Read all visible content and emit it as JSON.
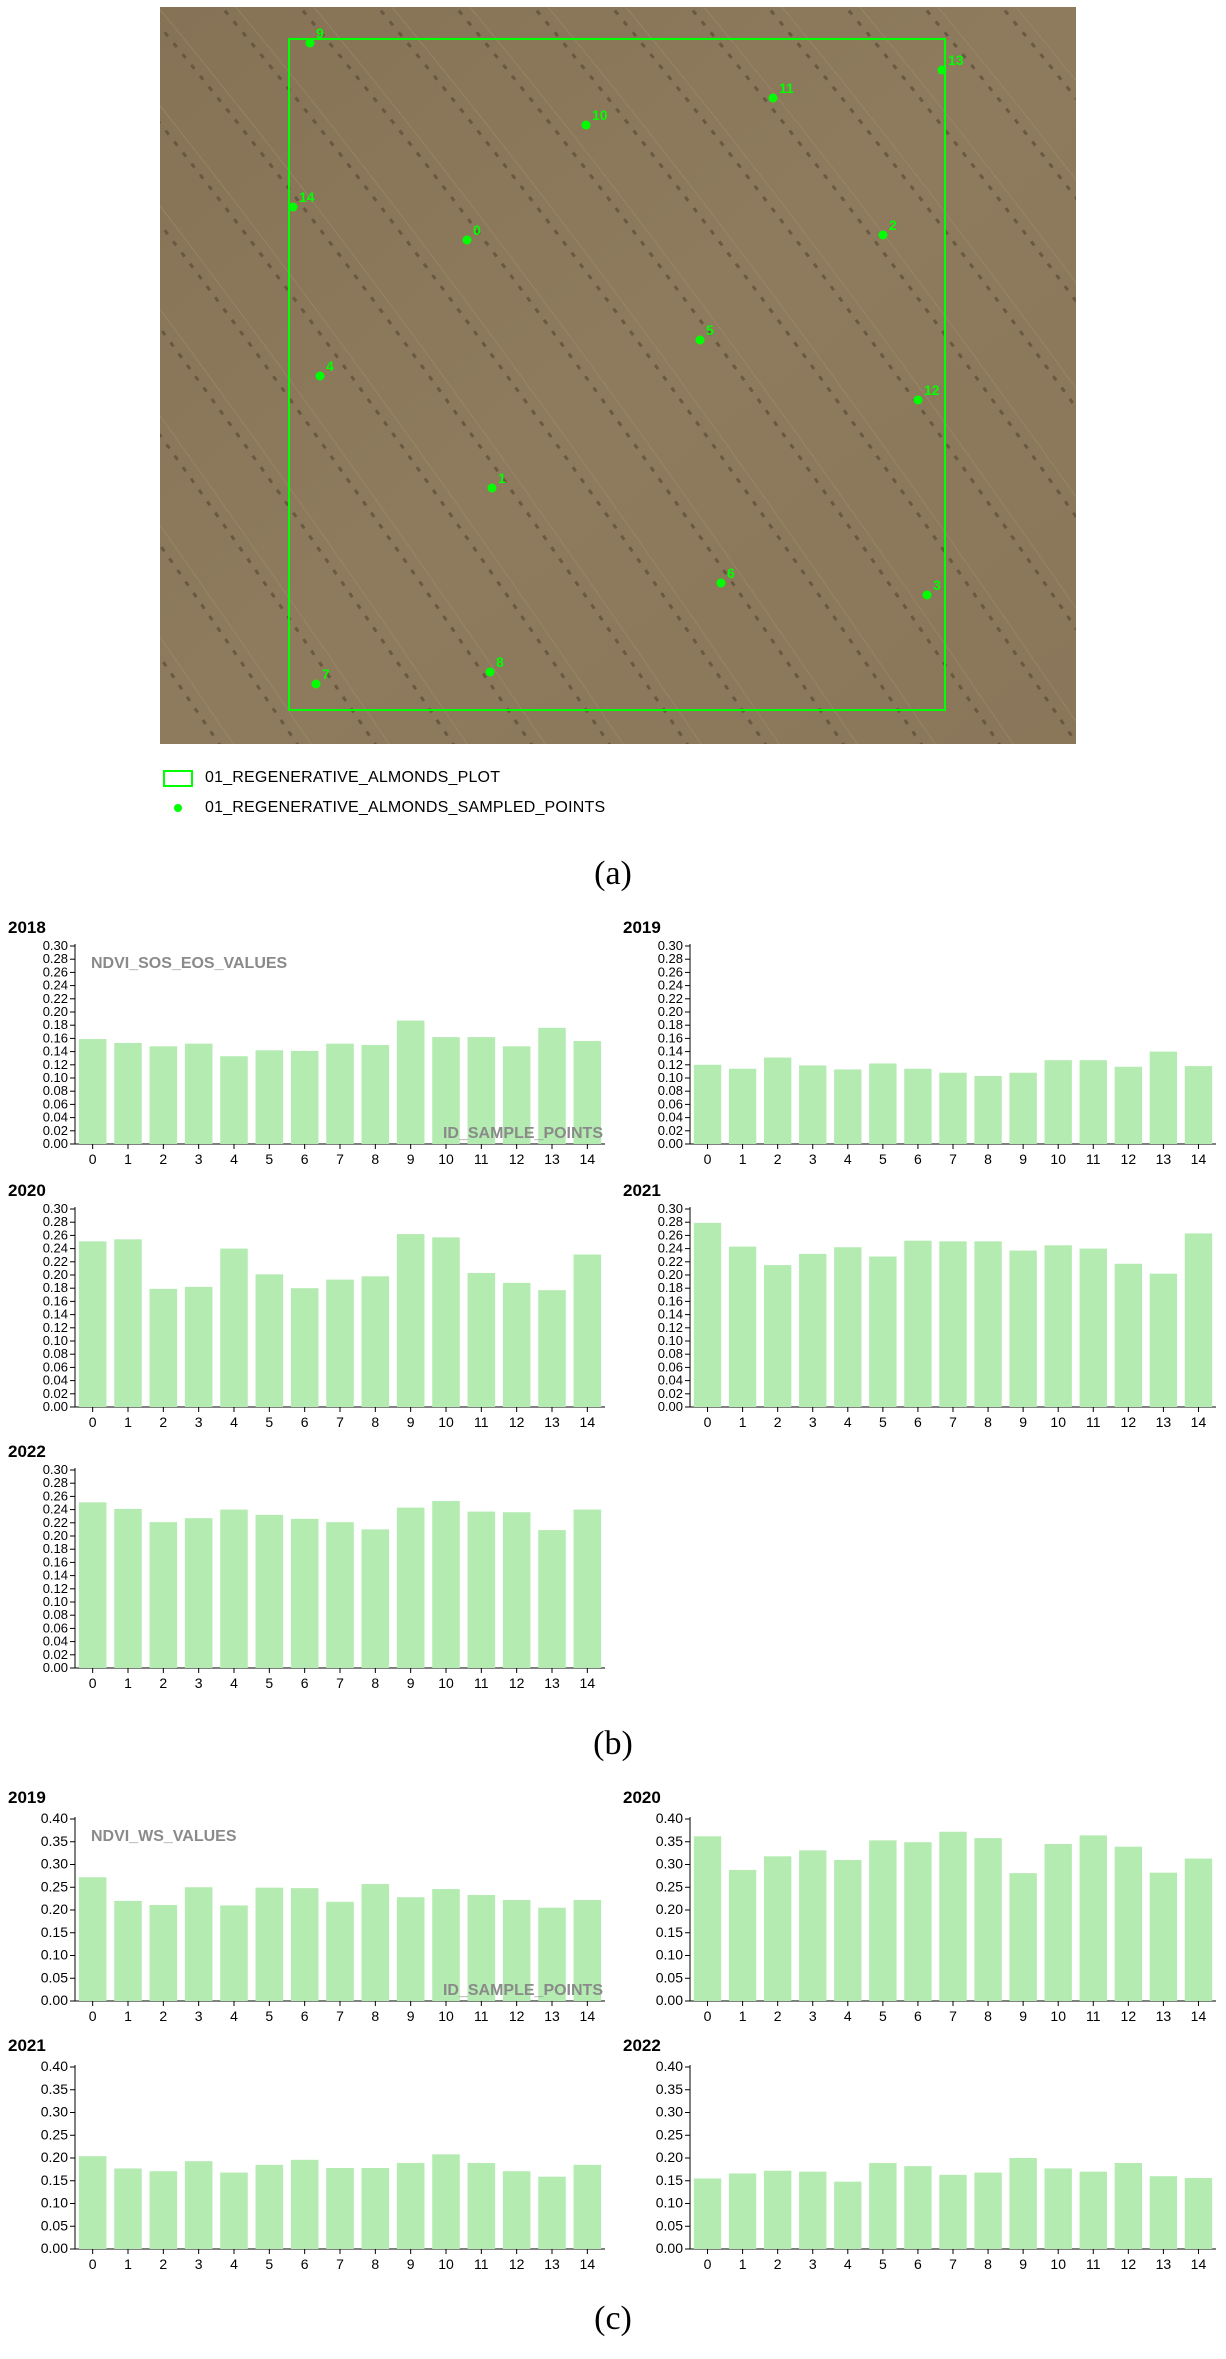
{
  "map": {
    "legend": [
      {
        "label": "01_REGENERATIVE_ALMONDS_PLOT",
        "symbol": "rectangle"
      },
      {
        "label": "01_REGENERATIVE_ALMONDS_SAMPLED_POINTS",
        "symbol": "dot"
      }
    ],
    "points": [
      "0",
      "1",
      "2",
      "3",
      "4",
      "5",
      "6",
      "7",
      "8",
      "9",
      "10",
      "11",
      "12",
      "13",
      "14"
    ],
    "colors": {
      "marker": "#00ff00",
      "ground": "#8c7a5a"
    }
  },
  "panel_labels": {
    "a": "(a)",
    "b": "(b)",
    "c": "(c)"
  },
  "chart_data": [
    {
      "type": "bar",
      "panel": "b",
      "title": "2018",
      "categories": [
        "0",
        "1",
        "2",
        "3",
        "4",
        "5",
        "6",
        "7",
        "8",
        "9",
        "10",
        "11",
        "12",
        "13",
        "14"
      ],
      "values": [
        0.159,
        0.153,
        0.148,
        0.152,
        0.133,
        0.142,
        0.141,
        0.152,
        0.15,
        0.187,
        0.162,
        0.162,
        0.148,
        0.176,
        0.156
      ],
      "ylim": [
        0,
        0.3
      ],
      "ytick_step": 0.02,
      "ytick_decimals": 2,
      "ylabel": "NDVI_SOS_EOS_VALUES",
      "xlabel": "ID_SAMPLE_POINTS",
      "color": "#b3ebb0"
    },
    {
      "type": "bar",
      "panel": "b",
      "title": "2019",
      "categories": [
        "0",
        "1",
        "2",
        "3",
        "4",
        "5",
        "6",
        "7",
        "8",
        "9",
        "10",
        "11",
        "12",
        "13",
        "14"
      ],
      "values": [
        0.12,
        0.114,
        0.131,
        0.119,
        0.113,
        0.122,
        0.114,
        0.108,
        0.103,
        0.108,
        0.127,
        0.127,
        0.117,
        0.14,
        0.118
      ],
      "ylim": [
        0,
        0.3
      ],
      "ytick_step": 0.02,
      "ytick_decimals": 2,
      "ylabel": "",
      "xlabel": "",
      "color": "#b3ebb0"
    },
    {
      "type": "bar",
      "panel": "b",
      "title": "2020",
      "categories": [
        "0",
        "1",
        "2",
        "3",
        "4",
        "5",
        "6",
        "7",
        "8",
        "9",
        "10",
        "11",
        "12",
        "13",
        "14"
      ],
      "values": [
        0.251,
        0.254,
        0.179,
        0.182,
        0.24,
        0.201,
        0.18,
        0.193,
        0.198,
        0.262,
        0.257,
        0.203,
        0.188,
        0.177,
        0.231
      ],
      "ylim": [
        0,
        0.3
      ],
      "ytick_step": 0.02,
      "ytick_decimals": 2,
      "ylabel": "",
      "xlabel": "",
      "color": "#b3ebb0"
    },
    {
      "type": "bar",
      "panel": "b",
      "title": "2021",
      "categories": [
        "0",
        "1",
        "2",
        "3",
        "4",
        "5",
        "6",
        "7",
        "8",
        "9",
        "10",
        "11",
        "12",
        "13",
        "14"
      ],
      "values": [
        0.279,
        0.243,
        0.215,
        0.232,
        0.242,
        0.228,
        0.252,
        0.251,
        0.251,
        0.237,
        0.245,
        0.24,
        0.217,
        0.202,
        0.263
      ],
      "ylim": [
        0,
        0.3
      ],
      "ytick_step": 0.02,
      "ytick_decimals": 2,
      "ylabel": "",
      "xlabel": "",
      "color": "#b3ebb0"
    },
    {
      "type": "bar",
      "panel": "b",
      "title": "2022",
      "categories": [
        "0",
        "1",
        "2",
        "3",
        "4",
        "5",
        "6",
        "7",
        "8",
        "9",
        "10",
        "11",
        "12",
        "13",
        "14"
      ],
      "values": [
        0.251,
        0.241,
        0.221,
        0.227,
        0.24,
        0.232,
        0.226,
        0.221,
        0.21,
        0.243,
        0.253,
        0.237,
        0.236,
        0.209,
        0.24
      ],
      "ylim": [
        0,
        0.3
      ],
      "ytick_step": 0.02,
      "ytick_decimals": 2,
      "ylabel": "",
      "xlabel": "",
      "color": "#b3ebb0"
    },
    {
      "type": "bar",
      "panel": "c",
      "title": "2019",
      "categories": [
        "0",
        "1",
        "2",
        "3",
        "4",
        "5",
        "6",
        "7",
        "8",
        "9",
        "10",
        "11",
        "12",
        "13",
        "14"
      ],
      "values": [
        0.272,
        0.22,
        0.211,
        0.25,
        0.21,
        0.249,
        0.248,
        0.218,
        0.257,
        0.228,
        0.246,
        0.233,
        0.222,
        0.205,
        0.222
      ],
      "ylim": [
        0,
        0.4
      ],
      "ytick_step": 0.05,
      "ytick_decimals": 2,
      "ylabel": "NDVI_WS_VALUES",
      "xlabel": "ID_SAMPLE_POINTS",
      "color": "#b3ebb0"
    },
    {
      "type": "bar",
      "panel": "c",
      "title": "2020",
      "categories": [
        "0",
        "1",
        "2",
        "3",
        "4",
        "5",
        "6",
        "7",
        "8",
        "9",
        "10",
        "11",
        "12",
        "13",
        "14"
      ],
      "values": [
        0.362,
        0.288,
        0.318,
        0.331,
        0.31,
        0.353,
        0.349,
        0.372,
        0.358,
        0.281,
        0.345,
        0.364,
        0.339,
        0.282,
        0.313
      ],
      "ylim": [
        0,
        0.4
      ],
      "ytick_step": 0.05,
      "ytick_decimals": 2,
      "ylabel": "",
      "xlabel": "",
      "color": "#b3ebb0"
    },
    {
      "type": "bar",
      "panel": "c",
      "title": "2021",
      "categories": [
        "0",
        "1",
        "2",
        "3",
        "4",
        "5",
        "6",
        "7",
        "8",
        "9",
        "10",
        "11",
        "12",
        "13",
        "14"
      ],
      "values": [
        0.204,
        0.177,
        0.171,
        0.193,
        0.168,
        0.185,
        0.196,
        0.178,
        0.178,
        0.189,
        0.208,
        0.189,
        0.171,
        0.159,
        0.185
      ],
      "ylim": [
        0,
        0.4
      ],
      "ytick_step": 0.05,
      "ytick_decimals": 2,
      "ylabel": "",
      "xlabel": "",
      "color": "#b3ebb0"
    },
    {
      "type": "bar",
      "panel": "c",
      "title": "2022",
      "categories": [
        "0",
        "1",
        "2",
        "3",
        "4",
        "5",
        "6",
        "7",
        "8",
        "9",
        "10",
        "11",
        "12",
        "13",
        "14"
      ],
      "values": [
        0.155,
        0.166,
        0.172,
        0.17,
        0.148,
        0.189,
        0.182,
        0.163,
        0.168,
        0.2,
        0.177,
        0.17,
        0.189,
        0.16,
        0.156
      ],
      "ylim": [
        0,
        0.4
      ],
      "ytick_step": 0.05,
      "ytick_decimals": 2,
      "ylabel": "",
      "xlabel": "",
      "color": "#b3ebb0"
    }
  ]
}
